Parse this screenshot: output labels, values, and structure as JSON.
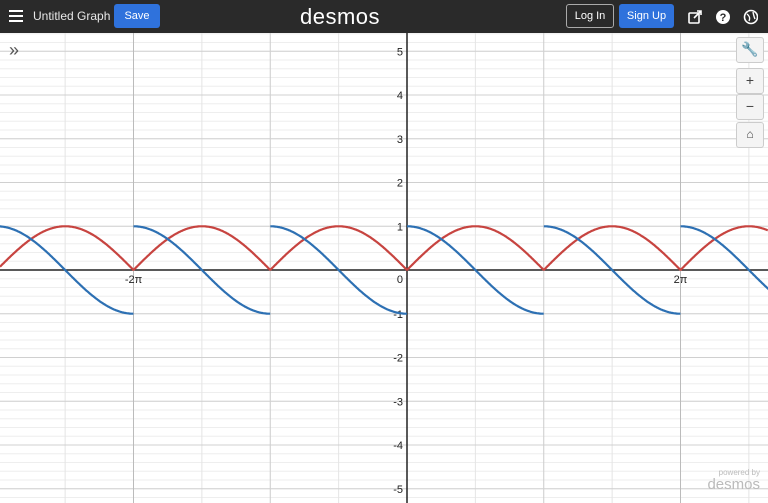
{
  "header": {
    "title": "Untitled Graph",
    "save": "Save",
    "logo": "desmos",
    "login": "Log In",
    "signup": "Sign Up"
  },
  "graph": {
    "y_labels": [
      5,
      4,
      3,
      2,
      1,
      -1,
      -2,
      -3,
      -4,
      -5
    ],
    "origin_label": "0",
    "x_labels": [
      {
        "value": -6.283185,
        "label": "-2π"
      },
      {
        "value": 6.283185,
        "label": "2π"
      }
    ]
  },
  "footer": {
    "powered_by": "powered by",
    "brand": "desmos"
  }
}
